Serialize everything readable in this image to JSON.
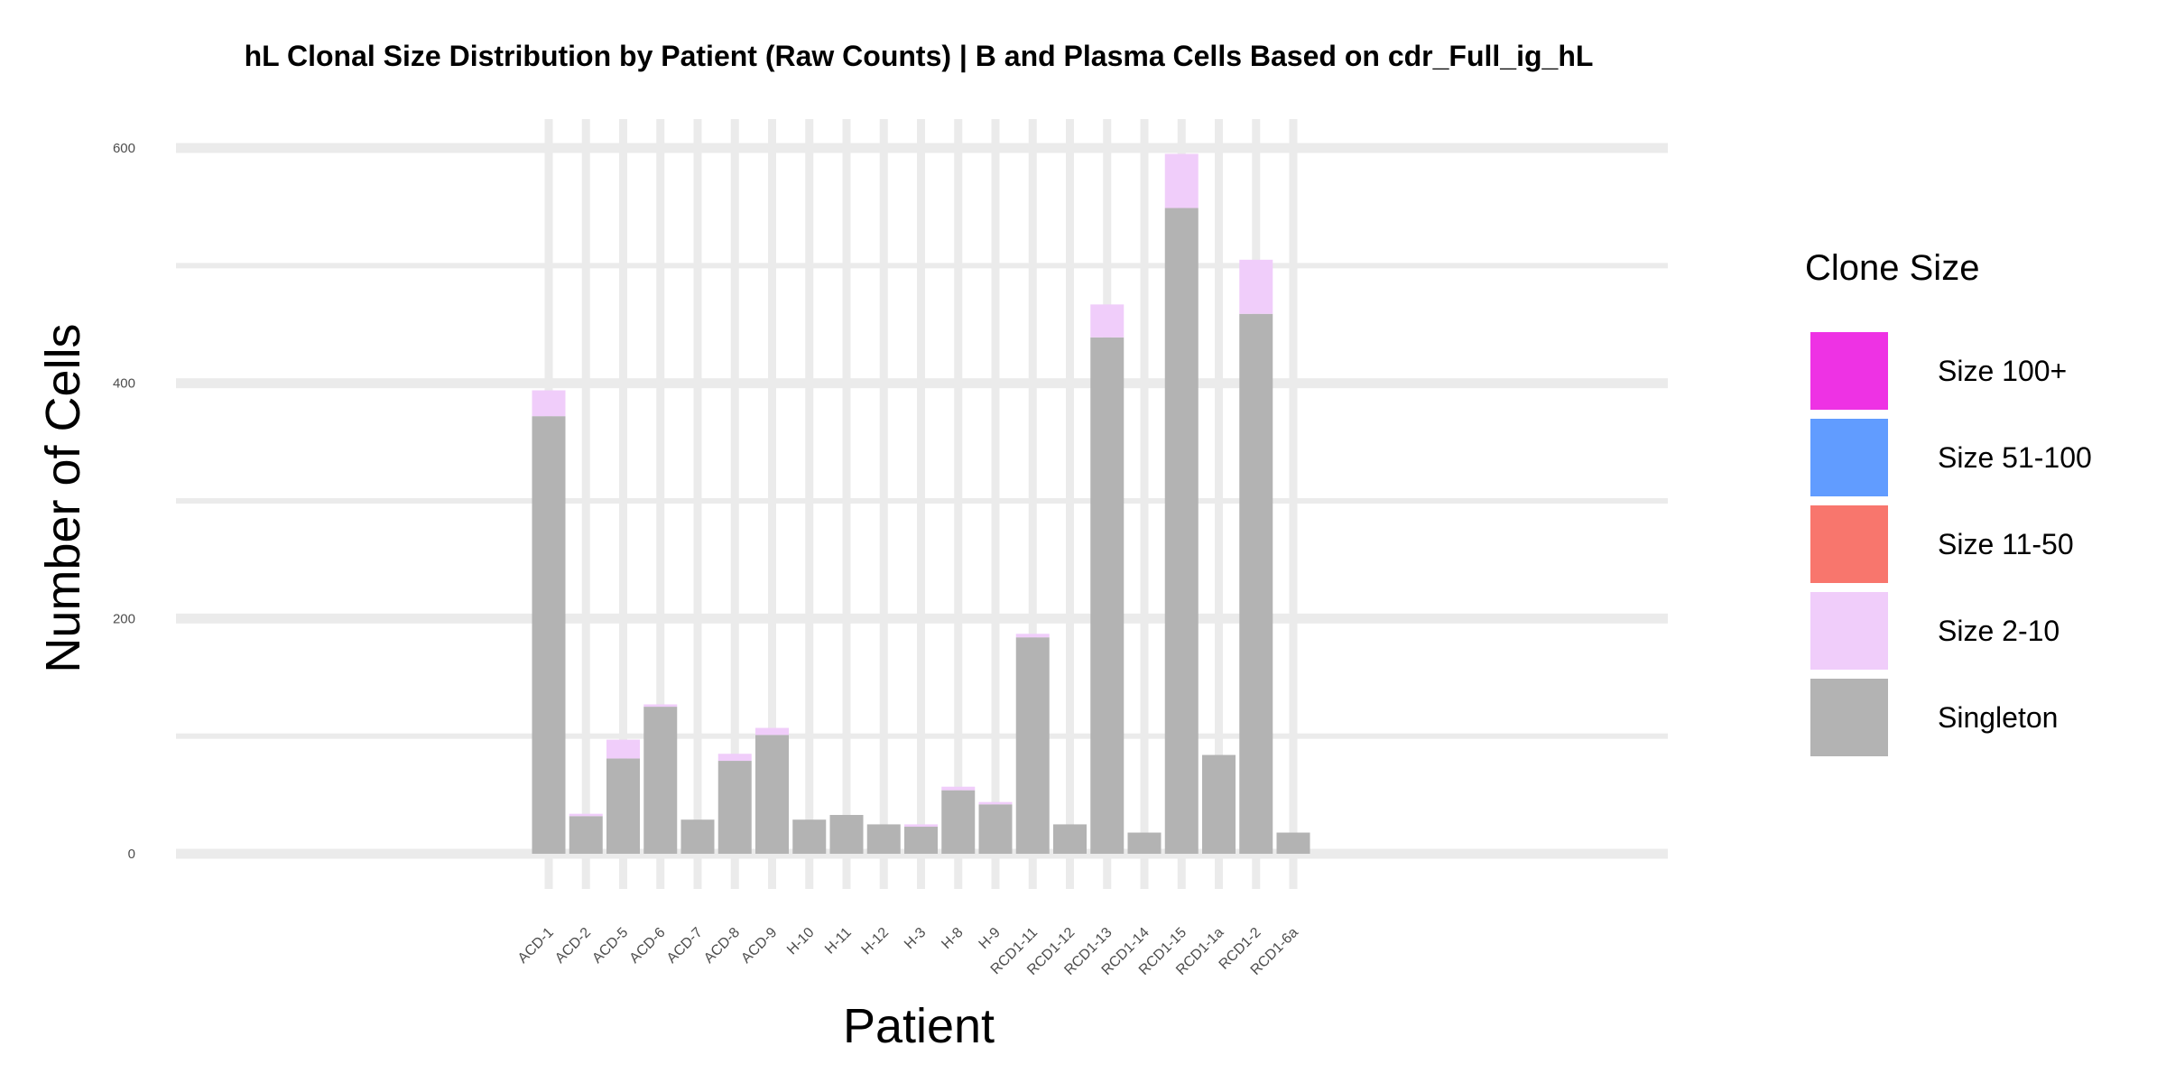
{
  "chart_data": {
    "type": "bar",
    "stacked": true,
    "title": "hL Clonal Size Distribution by Patient (Raw Counts) | B and Plasma Cells Based on cdr_Full_ig_hL",
    "xlabel": "Patient",
    "ylabel": "Number of Cells",
    "ylim": [
      0,
      600
    ],
    "yticks": [
      0,
      200,
      400,
      600
    ],
    "grid": true,
    "legend": {
      "title": "Clone Size",
      "position": "right"
    },
    "categories": [
      "ACD-1",
      "ACD-2",
      "ACD-5",
      "ACD-6",
      "ACD-7",
      "ACD-8",
      "ACD-9",
      "H-10",
      "H-11",
      "H-12",
      "H-3",
      "H-8",
      "H-9",
      "RCD1-11",
      "RCD1-12",
      "RCD1-13",
      "RCD1-14",
      "RCD1-15",
      "RCD1-1a",
      "RCD1-2",
      "RCD1-6a"
    ],
    "series": [
      {
        "name": "Singleton",
        "color": "#b3b3b3",
        "values": [
          372,
          32,
          81,
          125,
          29,
          79,
          101,
          29,
          33,
          25,
          23,
          54,
          42,
          184,
          25,
          439,
          18,
          549,
          84,
          459,
          18
        ]
      },
      {
        "name": "Size 2-10",
        "color": "#f0cdfa",
        "values": [
          22,
          2,
          16,
          2,
          0,
          6,
          6,
          0,
          0,
          0,
          2,
          3,
          2,
          3,
          0,
          28,
          0,
          46,
          0,
          46,
          0
        ]
      },
      {
        "name": "Size 11-50",
        "color": "#f8766d",
        "values": [
          0,
          0,
          0,
          0,
          0,
          0,
          0,
          0,
          0,
          0,
          0,
          0,
          0,
          0,
          0,
          0,
          0,
          0,
          0,
          0,
          0
        ]
      },
      {
        "name": "Size 51-100",
        "color": "#619cff",
        "values": [
          0,
          0,
          0,
          0,
          0,
          0,
          0,
          0,
          0,
          0,
          0,
          0,
          0,
          0,
          0,
          0,
          0,
          0,
          0,
          0,
          0
        ]
      },
      {
        "name": "Size 100+",
        "color": "#ee32e4",
        "values": [
          0,
          0,
          0,
          0,
          0,
          0,
          0,
          0,
          0,
          0,
          0,
          0,
          0,
          0,
          0,
          0,
          0,
          0,
          0,
          0,
          0
        ]
      }
    ],
    "legend_order": [
      "Size 100+",
      "Size 51-100",
      "Size 11-50",
      "Size 2-10",
      "Singleton"
    ]
  }
}
